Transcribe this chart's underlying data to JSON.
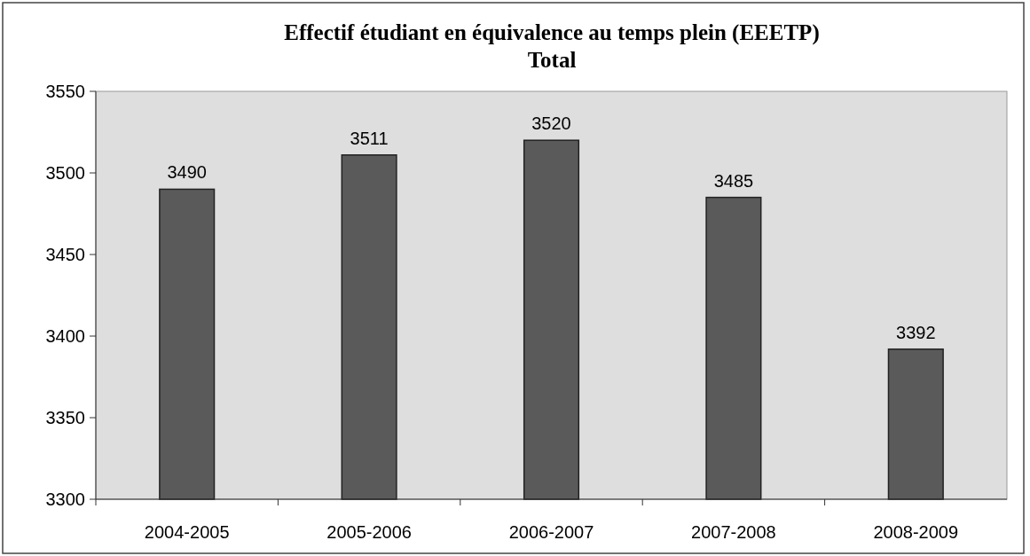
{
  "chart_data": {
    "type": "bar",
    "title": "Effectif étudiant en équivalence au temps plein (EEETP)",
    "subtitle": "Total",
    "categories": [
      "2004-2005",
      "2005-2006",
      "2006-2007",
      "2007-2008",
      "2008-2009"
    ],
    "values": [
      3490,
      3511,
      3520,
      3485,
      3392
    ],
    "color": "#5a5a5a",
    "ylim": [
      3300,
      3550
    ],
    "yticks": [
      3300,
      3350,
      3400,
      3450,
      3500,
      3550
    ],
    "grid": false,
    "data_labels": true
  }
}
